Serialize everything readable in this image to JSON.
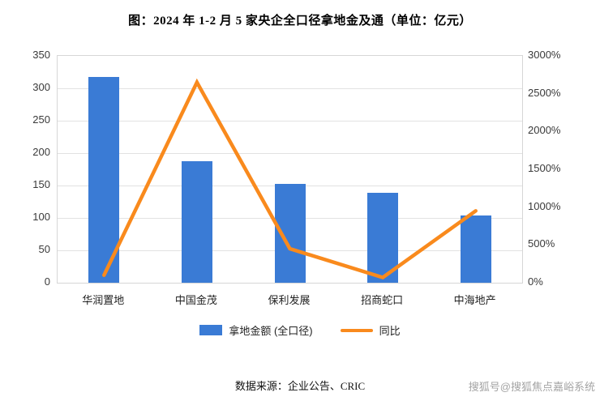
{
  "title": "图：2024 年 1-2 月 5 家央企全口径拿地金及通（单位：亿元）",
  "source_text": "数据来源：企业公告、CRIC",
  "watermark_text": "搜狐号@搜狐焦点嘉峪系统",
  "legend": {
    "bar_label": "拿地金额 (全口径)",
    "line_label": "同比"
  },
  "colors": {
    "bar": "#3a7bd5",
    "line": "#f98a1d",
    "grid": "#e2e2e2"
  },
  "chart_data": {
    "type": "bar+line combo",
    "title": "图：2024 年 1-2 月 5 家央企全口径拿地金及通（单位：亿元）",
    "categories": [
      "华润置地",
      "中国金茂",
      "保利发展",
      "招商蛇口",
      "中海地产"
    ],
    "series": [
      {
        "name": "拿地金额 (全口径)",
        "type": "bar",
        "axis": "left",
        "unit": "亿元",
        "values": [
          317,
          188,
          152,
          139,
          104
        ]
      },
      {
        "name": "同比",
        "type": "line",
        "axis": "right",
        "unit": "%",
        "values": [
          100,
          2650,
          450,
          70,
          950
        ]
      }
    ],
    "left_axis": {
      "min": 0,
      "max": 350,
      "step": 50,
      "ticks": [
        "0",
        "50",
        "100",
        "150",
        "200",
        "250",
        "300",
        "350"
      ]
    },
    "right_axis": {
      "min": 0,
      "max": 3000,
      "step": 500,
      "ticks": [
        "0%",
        "500%",
        "1000%",
        "1500%",
        "2000%",
        "2500%",
        "3000%"
      ]
    },
    "grid": true,
    "legend_position": "bottom"
  }
}
